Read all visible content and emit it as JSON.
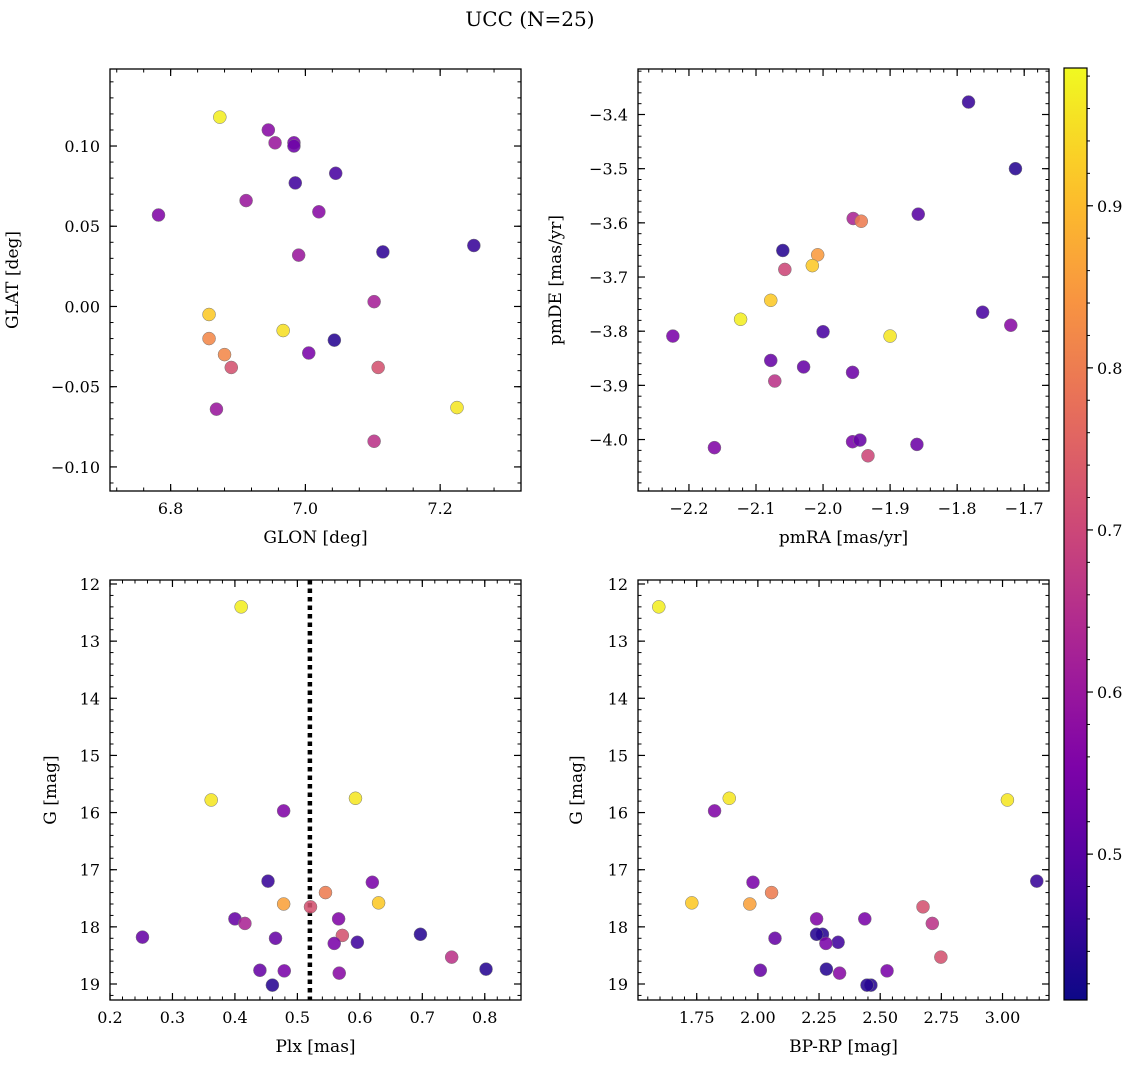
{
  "figure": {
    "title": "UCC (N=25)"
  },
  "colorbar": {
    "colormap": "plasma",
    "min": 0.41,
    "max": 0.985,
    "ticks": [
      0.5,
      0.6,
      0.7,
      0.8,
      0.9
    ],
    "tick_labels": [
      "0.5",
      "0.6",
      "0.7",
      "0.8",
      "0.9"
    ]
  },
  "chart_data": [
    {
      "type": "scatter",
      "panel": "top-left",
      "xlabel": "GLON [deg]",
      "ylabel": "GLAT [deg]",
      "xlim": [
        6.71,
        7.32
      ],
      "ylim": [
        -0.115,
        0.148
      ],
      "xticks": [
        6.8,
        7.0,
        7.2
      ],
      "xtick_labels": [
        "6.8",
        "7.0",
        "7.2"
      ],
      "yticks": [
        -0.1,
        -0.05,
        0.0,
        0.05,
        0.1
      ],
      "ytick_labels": [
        "−0.10",
        "−0.05",
        "0.00",
        "0.05",
        "0.10"
      ],
      "x": [
        6.873,
        6.945,
        6.955,
        6.983,
        6.983,
        6.985,
        7.045,
        6.782,
        6.912,
        7.02,
        6.99,
        7.115,
        7.25,
        6.857,
        6.967,
        6.857,
        7.043,
        6.88,
        7.005,
        6.89,
        7.108,
        7.102,
        6.868,
        7.225,
        7.102
      ],
      "y": [
        0.118,
        0.11,
        0.102,
        0.102,
        0.1,
        0.077,
        0.083,
        0.057,
        0.066,
        0.059,
        0.032,
        0.034,
        0.038,
        -0.005,
        -0.015,
        -0.02,
        -0.021,
        -0.03,
        -0.029,
        -0.038,
        -0.038,
        0.003,
        -0.064,
        -0.063,
        -0.084
      ],
      "color_value": [
        0.97,
        0.57,
        0.6,
        0.55,
        0.53,
        0.47,
        0.48,
        0.56,
        0.6,
        0.57,
        0.6,
        0.45,
        0.46,
        0.92,
        0.95,
        0.82,
        0.44,
        0.82,
        0.55,
        0.72,
        0.72,
        0.62,
        0.6,
        0.96,
        0.66
      ]
    },
    {
      "type": "scatter",
      "panel": "top-right",
      "xlabel": "pmRA [mas/yr]",
      "ylabel": "pmDE [mas/yr]",
      "xlim": [
        -2.276,
        -1.663
      ],
      "ylim": [
        -4.095,
        -3.316
      ],
      "xticks": [
        -2.2,
        -2.1,
        -2.0,
        -1.9,
        -1.8,
        -1.7
      ],
      "xtick_labels": [
        "−2.2",
        "−2.1",
        "−2.0",
        "−1.9",
        "−1.8",
        "−1.7"
      ],
      "yticks": [
        -4.0,
        -3.9,
        -3.8,
        -3.7,
        -3.6,
        -3.5,
        -3.4
      ],
      "ytick_labels": [
        "−4.0",
        "−3.9",
        "−3.8",
        "−3.7",
        "−3.6",
        "−3.5",
        "−3.4"
      ],
      "x": [
        -1.783,
        -1.713,
        -1.858,
        -1.955,
        -1.943,
        -2.06,
        -2.008,
        -2.016,
        -2.057,
        -2.078,
        -2.123,
        -2.224,
        -1.762,
        -1.72,
        -2.0,
        -1.9,
        -2.078,
        -2.029,
        -1.956,
        -2.072,
        -1.956,
        -1.945,
        -2.162,
        -1.86,
        -1.933
      ],
      "y": [
        -3.377,
        -3.5,
        -3.584,
        -3.592,
        -3.597,
        -3.651,
        -3.659,
        -3.679,
        -3.686,
        -3.743,
        -3.778,
        -3.809,
        -3.765,
        -3.789,
        -3.801,
        -3.809,
        -3.854,
        -3.866,
        -3.876,
        -3.892,
        -4.004,
        -4.001,
        -4.015,
        -4.009,
        -4.03
      ],
      "color_value": [
        0.46,
        0.44,
        0.5,
        0.63,
        0.8,
        0.44,
        0.85,
        0.92,
        0.7,
        0.92,
        0.97,
        0.55,
        0.48,
        0.57,
        0.48,
        0.96,
        0.52,
        0.52,
        0.53,
        0.66,
        0.55,
        0.52,
        0.56,
        0.53,
        0.7
      ]
    },
    {
      "type": "scatter",
      "panel": "bottom-left",
      "xlabel": "Plx [mas]",
      "ylabel": "G [mag]",
      "xlim": [
        0.2,
        0.858
      ],
      "ylim": [
        19.28,
        11.93
      ],
      "y_inverted": true,
      "vline": {
        "x": 0.52,
        "style": "dotted",
        "color": "#000000"
      },
      "xticks": [
        0.2,
        0.3,
        0.4,
        0.5,
        0.6,
        0.7,
        0.8
      ],
      "xtick_labels": [
        "0.2",
        "0.3",
        "0.4",
        "0.5",
        "0.6",
        "0.7",
        "0.8"
      ],
      "yticks": [
        12,
        13,
        14,
        15,
        16,
        17,
        18,
        19
      ],
      "ytick_labels": [
        "12",
        "13",
        "14",
        "15",
        "16",
        "17",
        "18",
        "19"
      ],
      "x": [
        0.41,
        0.362,
        0.478,
        0.593,
        0.453,
        0.62,
        0.545,
        0.478,
        0.63,
        0.521,
        0.4,
        0.416,
        0.566,
        0.572,
        0.252,
        0.465,
        0.697,
        0.559,
        0.596,
        0.747,
        0.44,
        0.479,
        0.567,
        0.802,
        0.46
      ],
      "y": [
        12.4,
        15.78,
        15.97,
        15.75,
        17.2,
        17.22,
        17.4,
        17.6,
        17.58,
        17.65,
        17.86,
        17.94,
        17.86,
        18.15,
        18.18,
        18.2,
        18.13,
        18.29,
        18.27,
        18.53,
        18.76,
        18.77,
        18.81,
        18.74,
        19.02
      ],
      "color_value": [
        0.97,
        0.96,
        0.56,
        0.96,
        0.46,
        0.55,
        0.8,
        0.86,
        0.92,
        0.72,
        0.52,
        0.63,
        0.56,
        0.72,
        0.52,
        0.52,
        0.44,
        0.55,
        0.47,
        0.66,
        0.52,
        0.55,
        0.57,
        0.44,
        0.44
      ]
    },
    {
      "type": "scatter",
      "panel": "bottom-right",
      "xlabel": "BP-RP [mag]",
      "ylabel": "G [mag]",
      "xlim": [
        1.51,
        3.19
      ],
      "ylim": [
        19.28,
        11.93
      ],
      "y_inverted": true,
      "xticks": [
        1.75,
        2.0,
        2.25,
        2.5,
        2.75,
        3.0
      ],
      "xtick_labels": [
        "1.75",
        "2.00",
        "2.25",
        "2.50",
        "2.75",
        "3.00"
      ],
      "yticks": [
        12,
        13,
        14,
        15,
        16,
        17,
        18,
        19
      ],
      "ytick_labels": [
        "12",
        "13",
        "14",
        "15",
        "16",
        "17",
        "18",
        "19"
      ],
      "x": [
        1.595,
        1.883,
        1.823,
        3.02,
        1.98,
        3.14,
        2.056,
        1.73,
        1.967,
        2.675,
        2.24,
        2.713,
        2.437,
        2.264,
        2.07,
        2.328,
        2.278,
        2.748,
        2.01,
        2.28,
        2.334,
        2.528,
        2.462,
        2.446,
        2.24
      ],
      "y": [
        12.4,
        15.75,
        15.97,
        15.78,
        17.22,
        17.2,
        17.4,
        17.58,
        17.6,
        17.65,
        17.86,
        17.94,
        17.86,
        18.13,
        18.2,
        18.27,
        18.29,
        18.53,
        18.76,
        18.74,
        18.81,
        18.77,
        19.02,
        19.02,
        18.13
      ],
      "color_value": [
        0.97,
        0.96,
        0.56,
        0.96,
        0.55,
        0.46,
        0.8,
        0.92,
        0.86,
        0.72,
        0.56,
        0.66,
        0.55,
        0.44,
        0.52,
        0.47,
        0.55,
        0.72,
        0.52,
        0.44,
        0.57,
        0.55,
        0.44,
        0.44,
        0.44
      ]
    }
  ]
}
